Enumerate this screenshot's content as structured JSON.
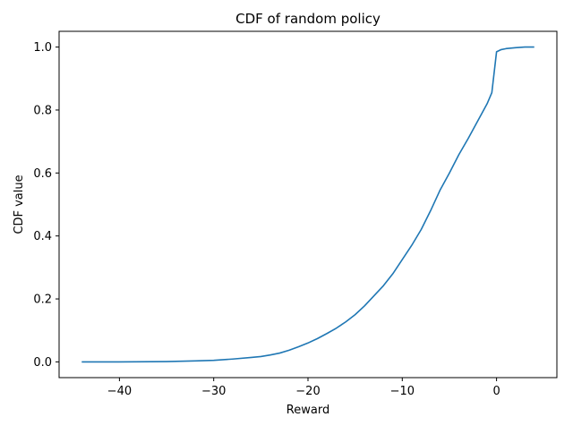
{
  "chart_data": {
    "type": "line",
    "title": "CDF of random policy",
    "xlabel": "Reward",
    "ylabel": "CDF value",
    "xlim": [
      -46.4,
      6.4
    ],
    "ylim": [
      -0.05,
      1.05
    ],
    "xticks": [
      -40,
      -30,
      -20,
      -10,
      0
    ],
    "xtick_labels": [
      "−40",
      "−30",
      "−20",
      "−10",
      "0"
    ],
    "yticks": [
      0.0,
      0.2,
      0.4,
      0.6,
      0.8,
      1.0
    ],
    "ytick_labels": [
      "0.0",
      "0.2",
      "0.4",
      "0.6",
      "0.8",
      "1.0"
    ],
    "grid": false,
    "legend": "none",
    "colors": {
      "line": "#1f77b4",
      "axis": "#000000",
      "background": "#ffffff"
    },
    "series": [
      {
        "x": [
          -44,
          -40,
          -35,
          -32,
          -30,
          -28,
          -26,
          -25,
          -24,
          -23,
          -22,
          -21,
          -20,
          -19,
          -18,
          -17,
          -16,
          -15,
          -14,
          -13,
          -12,
          -11,
          -10,
          -9,
          -8,
          -7,
          -6,
          -5,
          -4,
          -3,
          -2,
          -1,
          -0.5,
          0,
          0.5,
          1,
          2,
          3,
          4
        ],
        "y": [
          0.0,
          0.0,
          0.001,
          0.003,
          0.005,
          0.009,
          0.014,
          0.017,
          0.022,
          0.028,
          0.037,
          0.048,
          0.06,
          0.074,
          0.09,
          0.107,
          0.127,
          0.15,
          0.178,
          0.21,
          0.242,
          0.28,
          0.325,
          0.37,
          0.42,
          0.48,
          0.545,
          0.6,
          0.658,
          0.71,
          0.765,
          0.82,
          0.855,
          0.985,
          0.992,
          0.995,
          0.998,
          1.0,
          1.0
        ]
      }
    ]
  }
}
